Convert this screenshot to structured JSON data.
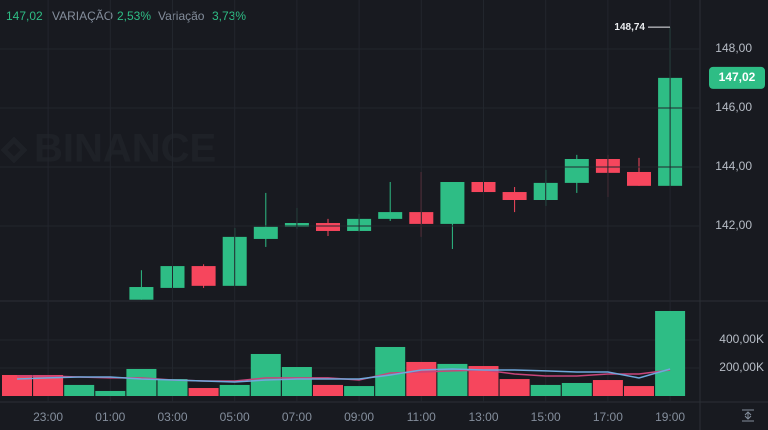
{
  "header": {
    "price": "147,02",
    "label_1": "VARIAÇÃO",
    "change_1": "2,53%",
    "label_2": "Variação",
    "change_2": "3,73%"
  },
  "chart_data": {
    "type": "candlestick",
    "watermark": "BINANCE",
    "categories": [
      null,
      "23:00",
      null,
      "01:00",
      null,
      "03:00",
      null,
      "05:00",
      null,
      "07:00",
      null,
      "09:00",
      null,
      "11:00",
      null,
      "13:00",
      null,
      "15:00",
      null,
      "17:00",
      null,
      "19:00"
    ],
    "open": [
      null,
      null,
      null,
      null,
      139.5,
      139.9,
      140.64,
      139.97,
      141.56,
      141.97,
      142.1,
      141.83,
      142.24,
      142.47,
      142.07,
      143.49,
      143.15,
      142.88,
      143.46,
      144.27,
      143.83,
      143.36
    ],
    "high": [
      null,
      null,
      null,
      null,
      140.5,
      140.75,
      140.7,
      141.93,
      143.12,
      142.61,
      142.24,
      142.41,
      143.49,
      143.83,
      143.49,
      144.54,
      143.32,
      143.9,
      144.41,
      144.41,
      144.31,
      148.74
    ],
    "low": [
      null,
      null,
      null,
      null,
      139.5,
      139.83,
      139.9,
      139.97,
      141.29,
      141.9,
      141.66,
      141.8,
      142.17,
      141.63,
      141.22,
      142.88,
      142.47,
      142.68,
      143.12,
      142.98,
      143.36,
      143.36
    ],
    "close": [
      null,
      null,
      null,
      null,
      139.93,
      140.64,
      139.97,
      141.63,
      141.97,
      142.1,
      141.83,
      142.24,
      142.47,
      142.07,
      143.49,
      143.15,
      142.88,
      143.46,
      144.27,
      143.8,
      143.36,
      147.02
    ],
    "up_color": "#2ebd85",
    "down_color": "#f6465d",
    "ylim": [
      139.49,
      149.66
    ],
    "yticks": [
      {
        "value": 142,
        "label": "142,00"
      },
      {
        "value": 144,
        "label": "144,00"
      },
      {
        "value": 146,
        "label": "146,00"
      },
      {
        "value": 148,
        "label": "148,00"
      }
    ],
    "grid": true,
    "current_price": {
      "value": 147.02,
      "label": "147,02"
    },
    "high_marker": {
      "value": 148.74,
      "label": "148,74"
    },
    "volume": {
      "values": [
        150000,
        150000,
        79000,
        36000,
        193000,
        121000,
        57000,
        79000,
        300000,
        207000,
        79000,
        71000,
        350000,
        243000,
        229000,
        214000,
        121000,
        79000,
        93000,
        114000,
        71000,
        607000
      ],
      "ylim": [
        0,
        664000
      ],
      "yticks": [
        {
          "value": 200000,
          "label": "200,00K"
        },
        {
          "value": 400000,
          "label": "400,00K"
        }
      ],
      "ma": [
        {
          "color": "#c8457a",
          "values": [
            143000,
            143000,
            136000,
            129000,
            129000,
            114000,
            107000,
            107000,
            129000,
            129000,
            129000,
            114000,
            164000,
            171000,
            179000,
            186000,
            157000,
            143000,
            143000,
            157000,
            157000,
            186000
          ]
        },
        {
          "color": "#6fa8dc",
          "values": [
            121000,
            129000,
            136000,
            136000,
            121000,
            114000,
            107000,
            100000,
            114000,
            121000,
            121000,
            121000,
            150000,
            186000,
            193000,
            186000,
            186000,
            179000,
            171000,
            171000,
            129000,
            193000
          ]
        }
      ]
    }
  }
}
